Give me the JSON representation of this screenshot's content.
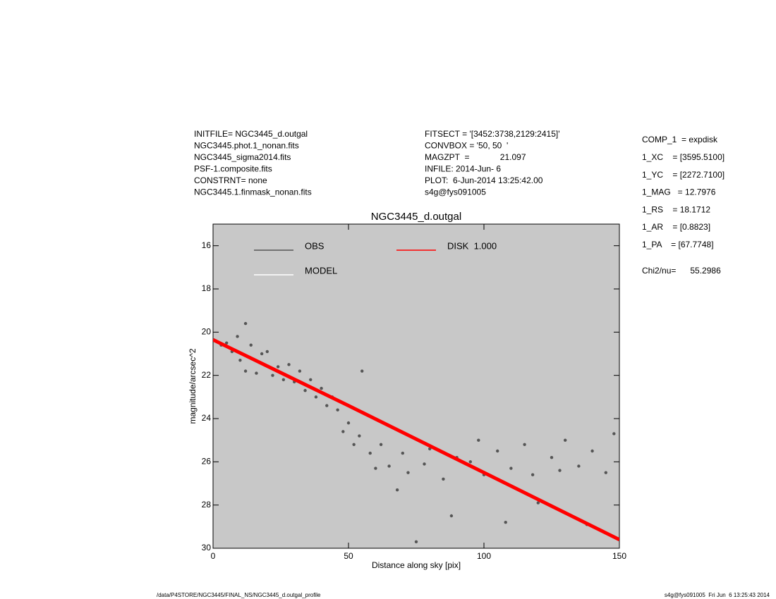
{
  "header": {
    "left": [
      "INITFILE= NGC3445_d.outgal",
      "NGC3445.phot.1_nonan.fits",
      "NGC3445_sigma2014.fits",
      "PSF-1.composite.fits",
      "CONSTRNT= none",
      "NGC3445.1.finmask_nonan.fits"
    ],
    "middle": [
      "FITSECT = '[3452:3738,2129:2415]'",
      "CONVBOX = '50, 50  '",
      "MAGZPT  =             21.097",
      "INFILE: 2014-Jun- 6",
      "PLOT:  6-Jun-2014 13:25:42.00",
      "s4g@fys091005"
    ],
    "right": [
      "COMP_1  = expdisk",
      "1_XC    = [3595.5100]",
      "1_YC    = [2272.7100]",
      "1_MAG   = 12.7976",
      "1_RS    = 18.1712",
      "1_AR    = [0.8823]",
      "1_PA    = [67.7748]"
    ],
    "chi": "Chi2/nu=      55.2986"
  },
  "footer": {
    "left": "/data/P4STORE/NGC3445/FINAL_NS/NGC3445_d.outgal_profile",
    "right": "s4g@fys091005  Fri Jun  6 13:25:43 2014"
  },
  "chart_data": {
    "type": "scatter",
    "title": "NGC3445_d.outgal",
    "xlabel": "Distance along sky [pix]",
    "ylabel": "magnitude/arcsec^2",
    "xlim": [
      0,
      150
    ],
    "xticks": [
      0,
      50,
      100,
      150
    ],
    "ylim": [
      30,
      15
    ],
    "yticks": [
      16,
      18,
      20,
      22,
      24,
      26,
      28,
      30
    ],
    "background": "#c8c8c8",
    "series": [
      {
        "name": "OBS",
        "color": "#555555",
        "mode": "points",
        "x": [
          1,
          3,
          5,
          7,
          9,
          10,
          12,
          12,
          14,
          16,
          18,
          20,
          22,
          24,
          26,
          28,
          30,
          32,
          34,
          36,
          38,
          40,
          42,
          44,
          46,
          48,
          50,
          52,
          54,
          55,
          58,
          60,
          62,
          65,
          68,
          70,
          72,
          75,
          78,
          80,
          85,
          88,
          90,
          95,
          98,
          100,
          105,
          108,
          110,
          115,
          118,
          120,
          125,
          128,
          130,
          135,
          138,
          140,
          145,
          148
        ],
        "values": [
          20.4,
          20.6,
          20.5,
          20.9,
          20.2,
          21.3,
          19.6,
          21.8,
          20.6,
          21.9,
          21.0,
          20.9,
          22.0,
          21.6,
          22.2,
          21.5,
          22.3,
          21.8,
          22.7,
          22.2,
          23.0,
          22.6,
          23.4,
          23.0,
          23.6,
          24.6,
          24.2,
          25.2,
          24.8,
          21.8,
          25.6,
          26.3,
          25.2,
          26.2,
          27.3,
          25.6,
          26.5,
          29.7,
          26.1,
          25.4,
          26.8,
          28.5,
          25.8,
          26.0,
          25.0,
          26.6,
          25.5,
          28.8,
          26.3,
          25.2,
          26.6,
          27.9,
          25.8,
          26.4,
          25.0,
          26.2,
          28.9,
          25.5,
          26.5,
          24.7
        ]
      },
      {
        "name": "MODEL",
        "color": "#ffffff",
        "mode": "line",
        "x": [
          0,
          50,
          100,
          150
        ],
        "values": [
          20.35,
          23.4,
          26.5,
          29.6
        ]
      },
      {
        "name": "DISK  1.000",
        "color": "#ff0000",
        "mode": "line",
        "x": [
          0,
          50,
          100,
          150
        ],
        "values": [
          20.35,
          23.4,
          26.5,
          29.6
        ]
      }
    ]
  }
}
